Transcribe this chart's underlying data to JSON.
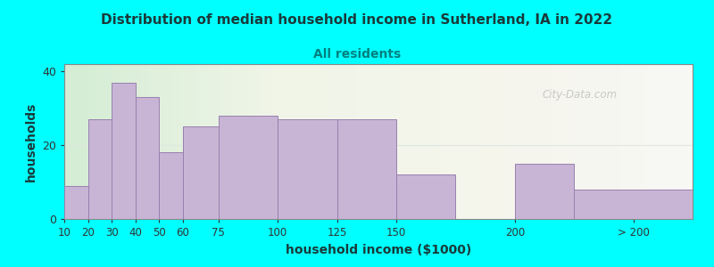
{
  "title": "Distribution of median household income in Sutherland, IA in 2022",
  "subtitle": "All residents",
  "xlabel": "household income ($1000)",
  "ylabel": "households",
  "background_color": "#00FFFF",
  "bar_color": "#c8b4d4",
  "bar_edge_color": "#9980b0",
  "title_color": "#1a3a3a",
  "subtitle_color": "#008080",
  "bar_values": [
    9,
    27,
    37,
    33,
    18,
    25,
    28,
    27,
    27,
    12,
    15,
    8
  ],
  "bar_left_edges": [
    10,
    20,
    30,
    40,
    50,
    60,
    75,
    100,
    125,
    150,
    200,
    225
  ],
  "bar_widths": [
    10,
    10,
    10,
    10,
    10,
    15,
    25,
    25,
    25,
    25,
    25,
    50
  ],
  "ylim": [
    0,
    42
  ],
  "yticks": [
    0,
    20,
    40
  ],
  "xtick_positions": [
    10,
    20,
    30,
    40,
    50,
    60,
    75,
    100,
    125,
    150,
    200,
    250
  ],
  "xtick_labels": [
    "10",
    "20",
    "30",
    "40",
    "50",
    "60",
    "75",
    "100",
    "125",
    "150",
    "200",
    "> 200"
  ],
  "xlim": [
    10,
    275
  ],
  "watermark": "City-Data.com"
}
